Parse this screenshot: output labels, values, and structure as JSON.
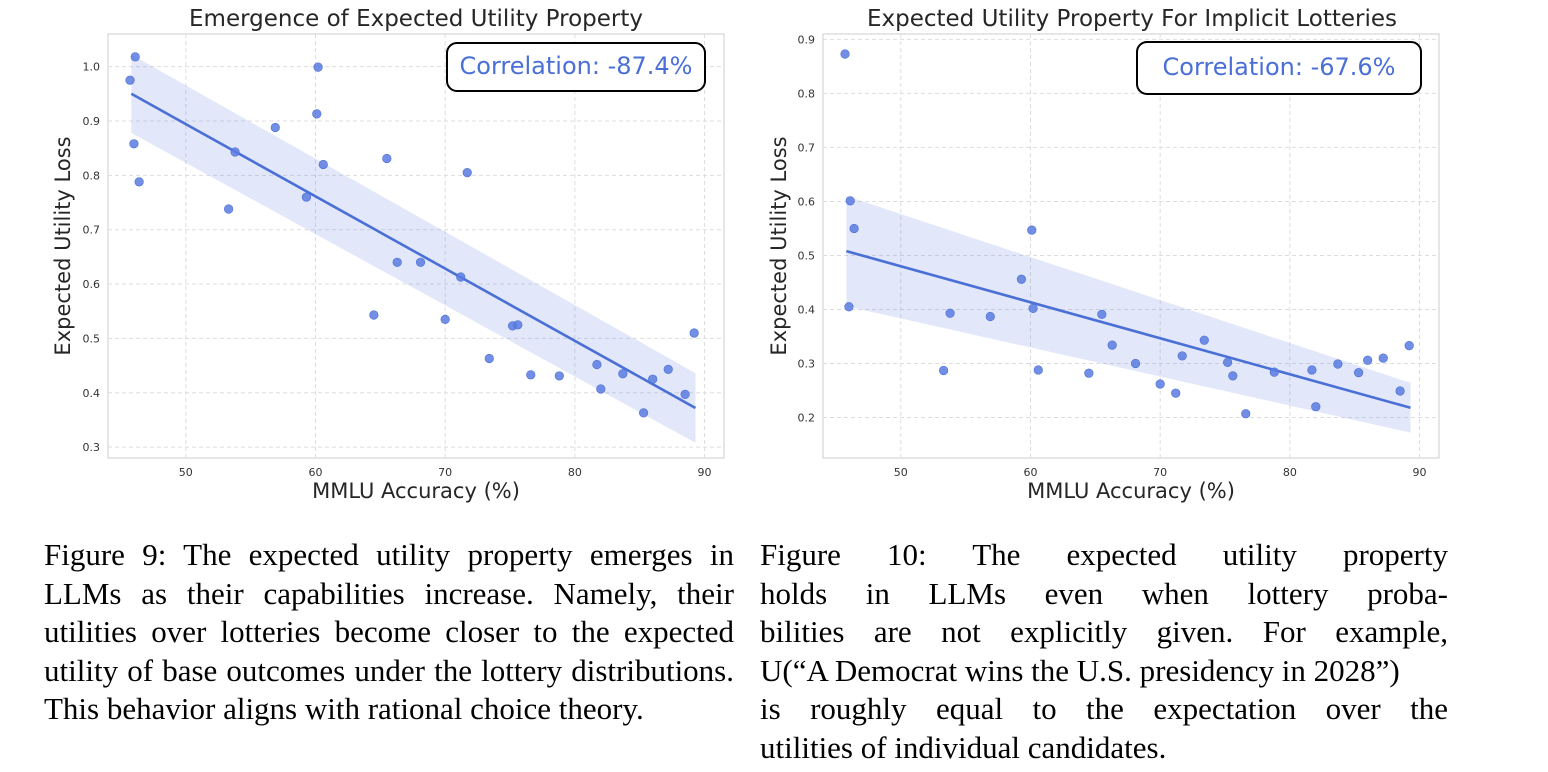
{
  "chart_data": [
    {
      "type": "scatter",
      "title": "Emergence of Expected Utility Property",
      "xlabel": "MMLU Accuracy (%)",
      "ylabel": "Expected Utility Loss",
      "xlim": [
        44,
        91.5
      ],
      "ylim": [
        0.28,
        1.06
      ],
      "xticks": [
        50,
        60,
        70,
        80,
        90
      ],
      "yticks": [
        0.3,
        0.4,
        0.5,
        0.6,
        0.7,
        0.8,
        0.9,
        1.0
      ],
      "ytick_labels": [
        "0.3",
        "0.4",
        "0.5",
        "0.6",
        "0.7",
        "0.8",
        "0.9",
        "1.0"
      ],
      "grid": true,
      "annotation": "Correlation: -87.4%",
      "series": [
        {
          "x": [
            45.7,
            46.1,
            46.0,
            46.4,
            53.3,
            53.8,
            56.9,
            59.3,
            60.1,
            60.2,
            60.6,
            64.5,
            65.5,
            66.3,
            68.1,
            70.0,
            71.2,
            71.7,
            73.4,
            75.2,
            75.6,
            76.6,
            78.8,
            81.7,
            82.0,
            83.7,
            85.3,
            86.0,
            87.2,
            88.5,
            89.2
          ],
          "y": [
            0.975,
            1.018,
            0.858,
            0.788,
            0.738,
            0.843,
            0.888,
            0.76,
            0.913,
            0.999,
            0.82,
            0.543,
            0.831,
            0.64,
            0.64,
            0.535,
            0.613,
            0.805,
            0.463,
            0.523,
            0.525,
            0.433,
            0.431,
            0.452,
            0.407,
            0.435,
            0.363,
            0.425,
            0.443,
            0.397,
            0.51
          ]
        }
      ],
      "fit": {
        "x": [
          45.8,
          89.3
        ],
        "y": [
          0.95,
          0.372
        ],
        "band_halfwidth": [
          0.072,
          0.064
        ]
      }
    },
    {
      "type": "scatter",
      "title": "Expected Utility Property For Implicit Lotteries",
      "xlabel": "MMLU Accuracy (%)",
      "ylabel": "Expected Utility Loss",
      "xlim": [
        44,
        91.5
      ],
      "ylim": [
        0.125,
        0.91
      ],
      "xticks": [
        50,
        60,
        70,
        80,
        90
      ],
      "yticks": [
        0.2,
        0.3,
        0.4,
        0.5,
        0.6,
        0.7,
        0.8,
        0.9
      ],
      "ytick_labels": [
        "0.2",
        "0.3",
        "0.4",
        "0.5",
        "0.6",
        "0.7",
        "0.8",
        "0.9"
      ],
      "grid": true,
      "annotation": "Correlation: -67.6%",
      "series": [
        {
          "x": [
            45.7,
            46.1,
            46.0,
            46.4,
            53.3,
            53.8,
            56.9,
            59.3,
            60.1,
            60.2,
            60.6,
            64.5,
            65.5,
            66.3,
            68.1,
            70.0,
            71.2,
            71.7,
            73.4,
            75.2,
            75.6,
            76.6,
            78.8,
            81.7,
            82.0,
            83.7,
            85.3,
            86.0,
            87.2,
            88.5,
            89.2
          ],
          "y": [
            0.873,
            0.601,
            0.405,
            0.55,
            0.287,
            0.393,
            0.387,
            0.456,
            0.547,
            0.402,
            0.288,
            0.282,
            0.391,
            0.334,
            0.3,
            0.262,
            0.245,
            0.314,
            0.343,
            0.302,
            0.277,
            0.207,
            0.284,
            0.288,
            0.22,
            0.299,
            0.283,
            0.306,
            0.31,
            0.249,
            0.333
          ]
        }
      ],
      "fit": {
        "x": [
          45.8,
          89.3
        ],
        "y": [
          0.508,
          0.218
        ],
        "band_halfwidth": [
          0.102,
          0.046
        ]
      }
    }
  ],
  "captions": {
    "left": "Figure 9: The expected utility property emerges in LLMs as their capabilities increase. Namely, their utilities over lotteries become closer to the expected utility of base outcomes under the lottery distributions. This behavior aligns with rational choice theory.",
    "right_lines": [
      "Figure 10:  The expected utility property",
      "holds in LLMs even when lottery proba-",
      "bilities are not explicitly given.  For example,",
      "U(“A Democrat wins the U.S. presidency in 2028”)",
      "is roughly equal to the expectation over the",
      "utilities of individual candidates."
    ]
  }
}
